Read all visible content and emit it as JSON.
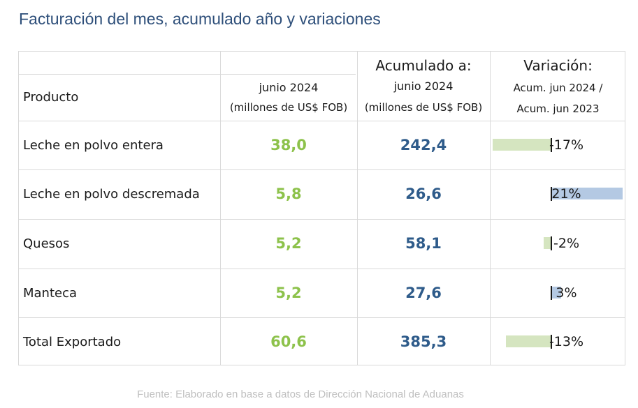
{
  "title": "Facturación del mes, acumulado año y variaciones",
  "table": {
    "header": {
      "product": "Producto",
      "month_line1": "junio 2024",
      "month_line2": "(millones de US$ FOB)",
      "acc_title": "Acumulado a:",
      "acc_line1": "junio 2024",
      "acc_line2": "(millones de US$ FOB)",
      "var_title": "Variación:",
      "var_line1": "Acum. jun 2024 /",
      "var_line2": "Acum. jun 2023"
    },
    "rows": [
      {
        "product": "Leche en polvo entera",
        "month": "38,0",
        "accumulated": "242,4",
        "variation_label": "-17%",
        "variation": -17
      },
      {
        "product": "Leche en polvo descremada",
        "month": "5,8",
        "accumulated": "26,6",
        "variation_label": "21%",
        "variation": 21
      },
      {
        "product": "Quesos",
        "month": "5,2",
        "accumulated": "58,1",
        "variation_label": "-2%",
        "variation": -2
      },
      {
        "product": "Manteca",
        "month": "5,2",
        "accumulated": "27,6",
        "variation_label": "3%",
        "variation": 3
      },
      {
        "product": "Total Exportado",
        "month": "60,6",
        "accumulated": "385,3",
        "variation_label": "-13%",
        "variation": -13
      }
    ]
  },
  "colors": {
    "title": "#2e4f7a",
    "month_values": "#8dc24b",
    "accumulated_values": "#2e5b8a",
    "negative_bar": "#d5e5c0",
    "positive_bar": "#b4c9e3",
    "grid": "#d9d9d9"
  },
  "source": "Fuente: Elaborado en base a datos de Dirección Nacional de Aduanas"
}
